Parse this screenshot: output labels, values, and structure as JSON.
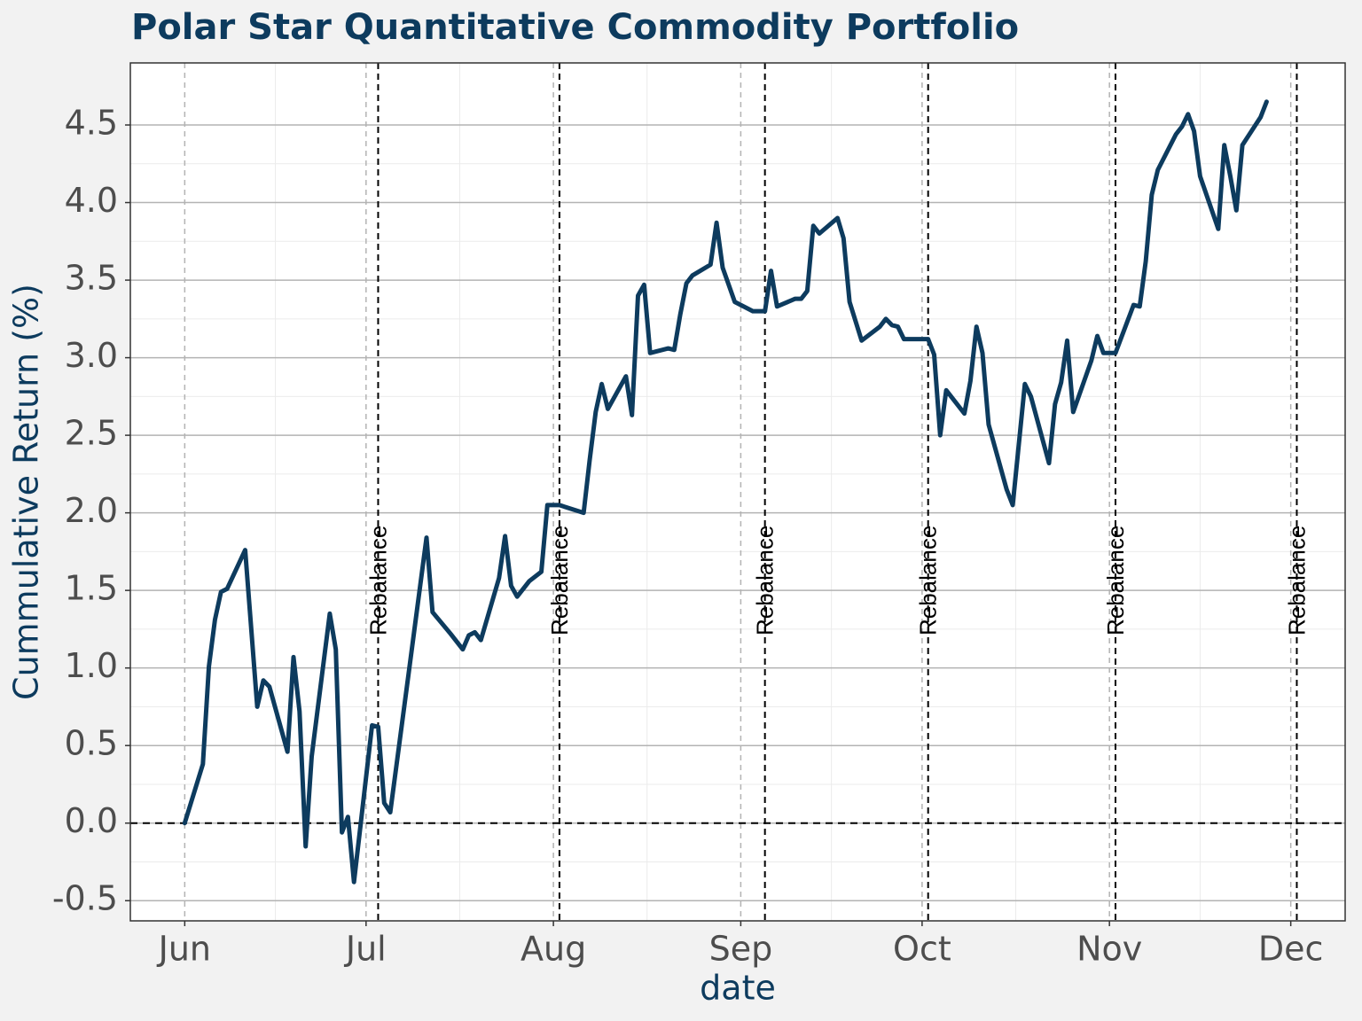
{
  "chart_data": {
    "type": "line",
    "title": "Polar Star Quantitative Commodity Portfolio",
    "x_label": "date",
    "y_label": "Cummulative Return (%)",
    "color": "#0d3b5e",
    "x": [
      0,
      3,
      4,
      5,
      6,
      7,
      10,
      12,
      13,
      14,
      17,
      18,
      19,
      20,
      21,
      24,
      25,
      26,
      27,
      28,
      31,
      32,
      33,
      34,
      37,
      40,
      41,
      44,
      46,
      47,
      48,
      49,
      52,
      53,
      54,
      55,
      57,
      59,
      60,
      62,
      66,
      67,
      68,
      69,
      70,
      73,
      74,
      75,
      76,
      77,
      80,
      81,
      82,
      83,
      84,
      87,
      88,
      89,
      91,
      94,
      96,
      97,
      98,
      101,
      102,
      103,
      104,
      105,
      108,
      109,
      110,
      112,
      115,
      116,
      117,
      118,
      119,
      122,
      123,
      124,
      125,
      126,
      129,
      130,
      131,
      132,
      133,
      136,
      137,
      139,
      140,
      143,
      144,
      145,
      146,
      147,
      150,
      151,
      152,
      154,
      157,
      158,
      159,
      160,
      161,
      164,
      165,
      166,
      167,
      168,
      171,
      172,
      173,
      174,
      175,
      178,
      179
    ],
    "values": [
      0.0,
      0.38,
      1.01,
      1.31,
      1.49,
      1.51,
      1.76,
      0.75,
      0.92,
      0.88,
      0.46,
      1.07,
      0.72,
      -0.15,
      0.43,
      1.35,
      1.12,
      -0.06,
      0.04,
      -0.38,
      0.63,
      0.62,
      0.13,
      0.07,
      0.95,
      1.84,
      1.36,
      1.22,
      1.12,
      1.21,
      1.23,
      1.18,
      1.58,
      1.85,
      1.53,
      1.46,
      1.56,
      1.62,
      2.05,
      2.05,
      2.0,
      2.34,
      2.65,
      2.83,
      2.67,
      2.88,
      2.63,
      3.4,
      3.47,
      3.03,
      3.06,
      3.05,
      3.28,
      3.48,
      3.53,
      3.6,
      3.87,
      3.58,
      3.36,
      3.3,
      3.3,
      3.56,
      3.33,
      3.38,
      3.38,
      3.43,
      3.85,
      3.8,
      3.9,
      3.77,
      3.36,
      3.11,
      3.2,
      3.25,
      3.21,
      3.2,
      3.12,
      3.12,
      3.12,
      3.02,
      2.5,
      2.79,
      2.64,
      2.85,
      3.2,
      3.03,
      2.57,
      2.15,
      2.05,
      2.83,
      2.75,
      2.32,
      2.7,
      2.84,
      3.11,
      2.65,
      2.98,
      3.14,
      3.03,
      3.03,
      3.34,
      3.33,
      3.62,
      4.05,
      4.21,
      4.44,
      4.49,
      4.57,
      4.46,
      4.17,
      3.83,
      4.37,
      4.17,
      3.95,
      4.37,
      4.55,
      4.65
    ],
    "xlim": [
      -9,
      192
    ],
    "xticks": [
      {
        "value": 0,
        "label": "Jun"
      },
      {
        "value": 30,
        "label": "Jul"
      },
      {
        "value": 61,
        "label": "Aug"
      },
      {
        "value": 92,
        "label": "Sep"
      },
      {
        "value": 122,
        "label": "Oct"
      },
      {
        "value": 153,
        "label": "Nov"
      },
      {
        "value": 183,
        "label": "Dec"
      }
    ],
    "ylim": [
      -0.63,
      4.9
    ],
    "yticks": [
      -0.5,
      0.5,
      {
        "value": 0,
        "label": "0.0"
      },
      {
        "value": 1,
        "label": "1.0"
      },
      1.5,
      {
        "value": 2,
        "label": "2.0"
      },
      2.5,
      {
        "value": 3,
        "label": "3.0"
      },
      3.5,
      {
        "value": 4,
        "label": "4.0"
      },
      4.5
    ],
    "grid": true,
    "hline": 0,
    "vlines": [
      {
        "x": 32,
        "label": "Rebalance"
      },
      {
        "x": 62,
        "label": "Rebalance"
      },
      {
        "x": 96,
        "label": "Rebalance"
      },
      {
        "x": 123,
        "label": "Rebalance"
      },
      {
        "x": 154,
        "label": "Rebalance"
      },
      {
        "x": 184,
        "label": "Rebalance"
      }
    ]
  }
}
